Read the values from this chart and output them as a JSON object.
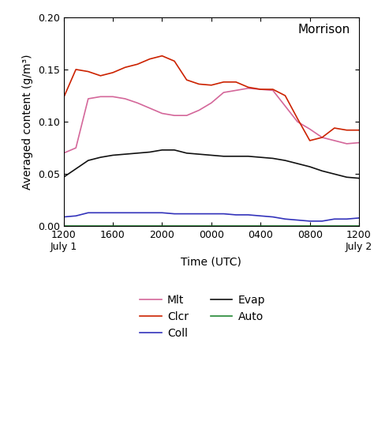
{
  "title": "Morrison",
  "xlabel": "Time (UTC)",
  "ylabel": "Averaged content (g/m³)",
  "ylim": [
    0.0,
    0.2
  ],
  "yticks": [
    0.0,
    0.05,
    0.1,
    0.15,
    0.2
  ],
  "xtick_labels": [
    "1200\nJuly 1",
    "1600",
    "2000",
    "0000",
    "0400",
    "0800",
    "1200\nJuly 2"
  ],
  "x": [
    0,
    1,
    2,
    3,
    4,
    5,
    6,
    7,
    8,
    9,
    10,
    11,
    12,
    13,
    14,
    15,
    16,
    17,
    18,
    19,
    20,
    21,
    22,
    23,
    24
  ],
  "Mlt": [
    0.07,
    0.075,
    0.122,
    0.124,
    0.124,
    0.122,
    0.118,
    0.113,
    0.108,
    0.106,
    0.106,
    0.111,
    0.118,
    0.128,
    0.13,
    0.132,
    0.131,
    0.13,
    0.115,
    0.1,
    0.093,
    0.085,
    0.082,
    0.079,
    0.08
  ],
  "Clcr": [
    0.123,
    0.15,
    0.148,
    0.144,
    0.147,
    0.152,
    0.155,
    0.16,
    0.163,
    0.158,
    0.14,
    0.136,
    0.135,
    0.138,
    0.138,
    0.133,
    0.131,
    0.131,
    0.125,
    0.103,
    0.082,
    0.085,
    0.094,
    0.092,
    0.092
  ],
  "Coll": [
    0.009,
    0.01,
    0.013,
    0.013,
    0.013,
    0.013,
    0.013,
    0.013,
    0.013,
    0.012,
    0.012,
    0.012,
    0.012,
    0.012,
    0.011,
    0.011,
    0.01,
    0.009,
    0.007,
    0.006,
    0.005,
    0.005,
    0.007,
    0.007,
    0.008
  ],
  "Evap": [
    0.047,
    0.055,
    0.063,
    0.066,
    0.068,
    0.069,
    0.07,
    0.071,
    0.073,
    0.073,
    0.07,
    0.069,
    0.068,
    0.067,
    0.067,
    0.067,
    0.066,
    0.065,
    0.063,
    0.06,
    0.057,
    0.053,
    0.05,
    0.047,
    0.046
  ],
  "Auto": [
    0.0,
    0.0,
    0.0,
    0.0,
    0.0,
    0.0,
    0.0,
    0.0,
    0.0,
    0.0,
    0.0,
    0.0,
    0.0,
    0.0,
    0.0,
    0.0,
    0.0,
    0.0,
    0.0,
    0.0,
    0.0,
    0.0,
    0.0,
    0.0,
    0.0
  ],
  "colors": {
    "Mlt": "#d4679a",
    "Clcr": "#cc2200",
    "Coll": "#3333bb",
    "Evap": "#111111",
    "Auto": "#228833"
  },
  "xtick_positions": [
    0,
    4,
    8,
    12,
    16,
    20,
    24
  ],
  "line_order": [
    "Mlt",
    "Clcr",
    "Coll",
    "Evap",
    "Auto"
  ],
  "legend_col1": [
    "Mlt",
    "Coll",
    "Auto"
  ],
  "legend_col2": [
    "Clcr",
    "Evap"
  ]
}
